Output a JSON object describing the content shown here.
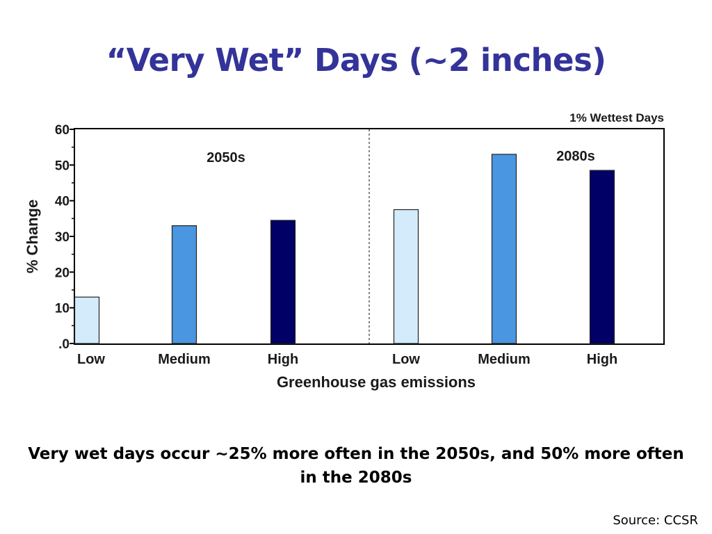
{
  "slide": {
    "title": "“Very Wet” Days (~2 inches)",
    "caption": "Very wet days occur ~25% more often in the 2050s, and 50% more often in the 2080s",
    "source": "Source: CCSR"
  },
  "chart_data": {
    "type": "bar",
    "corner_label": "1% Wettest Days",
    "xlabel": "Greenhouse gas emissions",
    "ylabel": "% Change",
    "ylim": [
      0,
      60
    ],
    "yticks": [
      0,
      10,
      20,
      30,
      40,
      50,
      60
    ],
    "ytick_labels": [
      ".0",
      "10",
      "20",
      "30",
      "40",
      "50",
      "60"
    ],
    "grid": false,
    "legend": "none",
    "groups": [
      {
        "name": "2050s",
        "categories": [
          "Low",
          "Medium",
          "High"
        ],
        "values": [
          13,
          33,
          34.5
        ]
      },
      {
        "name": "2080s",
        "categories": [
          "Low",
          "Medium",
          "High"
        ],
        "values": [
          37.5,
          53,
          48.5
        ]
      }
    ],
    "colors": {
      "Low": "#d4ebfb",
      "Medium": "#4a96e0",
      "High": "#000066"
    }
  },
  "colors": {
    "title": "#33339a"
  }
}
